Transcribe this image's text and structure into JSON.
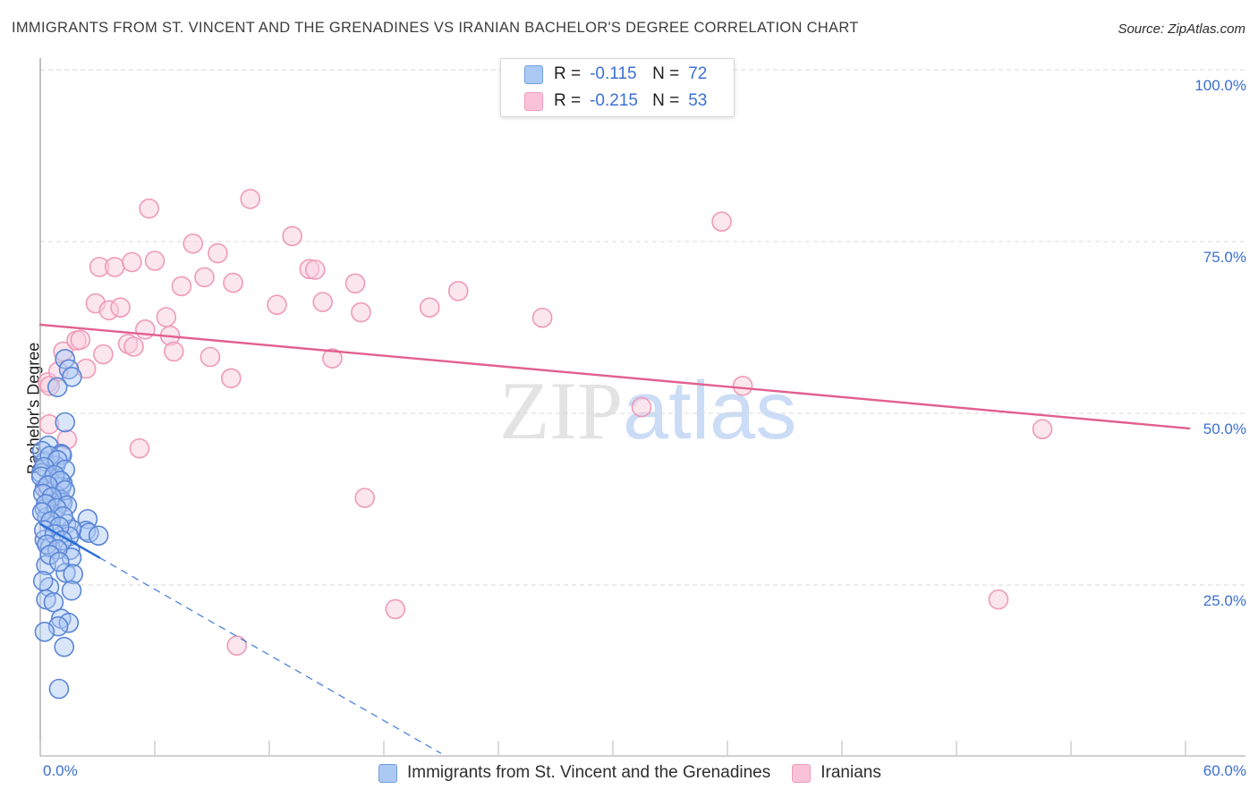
{
  "header": {
    "title": "IMMIGRANTS FROM ST. VINCENT AND THE GRENADINES VS IRANIAN BACHELOR'S DEGREE CORRELATION CHART",
    "source": "Source: ZipAtlas.com"
  },
  "watermark": {
    "part1": "ZIP",
    "part2": "atlas",
    "color1": "#e3e3e3",
    "color2": "#cbdcf6"
  },
  "axes": {
    "y_label": "Bachelor's Degree",
    "y_tick_labels": [
      "100.0%",
      "75.0%",
      "50.0%",
      "25.0%"
    ],
    "y_gridline_values": [
      100,
      75,
      50,
      25
    ],
    "x_min_label": "0.0%",
    "x_max_label": "60.0%",
    "x_tick_values": [
      0,
      6,
      12,
      18,
      24,
      30,
      36,
      42,
      48,
      54,
      60
    ],
    "x_range": [
      0,
      60
    ],
    "y_range": [
      0,
      100
    ],
    "grid": "dashed horizontal"
  },
  "legend_box": {
    "rows": [
      {
        "r_label": "R =",
        "r_value": "-0.115",
        "n_label": "N =",
        "n_value": "72",
        "swatch_fill": "#abc9f3",
        "swatch_border": "#6f9fe0"
      },
      {
        "r_label": "R =",
        "r_value": "-0.215",
        "n_label": "N =",
        "n_value": "53",
        "swatch_fill": "#f9c2d6",
        "swatch_border": "#ef9cbd"
      }
    ]
  },
  "bottom_legend": {
    "items": [
      {
        "label": "Immigrants from St. Vincent and the Grenadines",
        "swatch_fill": "#abc9f3",
        "swatch_border": "#6f9fe0"
      },
      {
        "label": "Iranians",
        "swatch_fill": "#f9c2d6",
        "swatch_border": "#ef9cbd"
      }
    ]
  },
  "chart_data": {
    "type": "scatter",
    "title": "Immigrants from St. Vincent and the Grenadines vs Iranian Bachelor's Degree",
    "xlabel": "Immigrants from St. Vincent and the Grenadines (%)",
    "ylabel": "Bachelor's Degree (%)",
    "xlim": [
      0,
      60
    ],
    "ylim": [
      0,
      100
    ],
    "legend_position": "top-center",
    "series": [
      {
        "name": "Immigrants from St. Vincent and the Grenadines",
        "R": -0.115,
        "N": 72,
        "point_fill": "rgba(170,200,245,0.45)",
        "point_stroke": "#5b86d5",
        "points": [
          [
            1.3,
            57.9
          ],
          [
            1.5,
            56.4
          ],
          [
            1.66,
            55.3
          ],
          [
            0.9,
            53.8
          ],
          [
            1.3,
            48.7
          ],
          [
            0.42,
            45.3
          ],
          [
            1.09,
            44.1
          ],
          [
            1.14,
            43.9
          ],
          [
            0.23,
            43.0
          ],
          [
            0.8,
            42.4
          ],
          [
            0.05,
            41.3
          ],
          [
            0.6,
            40.4
          ],
          [
            1.17,
            39.8
          ],
          [
            1.1,
            39.3
          ],
          [
            0.23,
            39.1
          ],
          [
            0.8,
            38.1
          ],
          [
            1.09,
            37.4
          ],
          [
            1.17,
            37.0
          ],
          [
            0.23,
            36.1
          ],
          [
            0.7,
            35.4
          ],
          [
            2.48,
            34.6
          ],
          [
            1.36,
            33.9
          ],
          [
            0.35,
            34.9
          ],
          [
            2.39,
            32.9
          ],
          [
            2.55,
            32.6
          ],
          [
            3.05,
            32.2
          ],
          [
            1.64,
            33.1
          ],
          [
            1.51,
            32.1
          ],
          [
            0.23,
            31.6
          ],
          [
            0.52,
            30.5
          ],
          [
            1.56,
            30.1
          ],
          [
            1.64,
            29.0
          ],
          [
            0.31,
            27.9
          ],
          [
            1.33,
            26.8
          ],
          [
            1.72,
            26.6
          ],
          [
            0.47,
            24.7
          ],
          [
            1.64,
            24.2
          ],
          [
            0.31,
            22.9
          ],
          [
            0.7,
            22.5
          ],
          [
            1.09,
            20.1
          ],
          [
            1.49,
            19.5
          ],
          [
            0.94,
            19.0
          ],
          [
            0.23,
            18.2
          ],
          [
            1.25,
            16.0
          ],
          [
            0.98,
            9.9
          ],
          [
            0.1,
            44.5
          ],
          [
            0.5,
            43.8
          ],
          [
            0.9,
            43.2
          ],
          [
            0.2,
            42.2
          ],
          [
            1.3,
            41.8
          ],
          [
            0.05,
            40.8
          ],
          [
            0.75,
            41.0
          ],
          [
            1.05,
            40.2
          ],
          [
            0.4,
            39.5
          ],
          [
            1.3,
            38.8
          ],
          [
            0.15,
            38.3
          ],
          [
            0.6,
            37.8
          ],
          [
            1.4,
            36.6
          ],
          [
            0.3,
            36.8
          ],
          [
            0.85,
            36.2
          ],
          [
            0.1,
            35.6
          ],
          [
            1.2,
            35.0
          ],
          [
            0.55,
            34.3
          ],
          [
            1.0,
            33.5
          ],
          [
            0.2,
            33.0
          ],
          [
            0.75,
            32.4
          ],
          [
            1.15,
            31.5
          ],
          [
            0.35,
            30.9
          ],
          [
            0.9,
            30.2
          ],
          [
            0.5,
            29.4
          ],
          [
            1.0,
            28.4
          ],
          [
            0.15,
            25.6
          ]
        ],
        "trendline": {
          "color": "#2b6fd4",
          "solid": [
            [
              0,
              33.9
            ],
            [
              3.1,
              29.0
            ]
          ],
          "dashed": [
            [
              3.1,
              29.0
            ],
            [
              21.0,
              0.5
            ]
          ]
        }
      },
      {
        "name": "Iranians",
        "R": -0.215,
        "N": 53,
        "point_fill": "rgba(250,205,222,0.5)",
        "point_stroke": "#ef9ab8",
        "points": [
          [
            0.4,
            54.5
          ],
          [
            0.5,
            54.0
          ],
          [
            0.95,
            56.1
          ],
          [
            1.2,
            59.0
          ],
          [
            1.9,
            60.6
          ],
          [
            2.1,
            60.7
          ],
          [
            2.4,
            56.5
          ],
          [
            2.9,
            66.0
          ],
          [
            3.1,
            71.3
          ],
          [
            3.3,
            58.6
          ],
          [
            3.6,
            65.0
          ],
          [
            3.9,
            71.3
          ],
          [
            4.2,
            65.4
          ],
          [
            4.6,
            60.1
          ],
          [
            4.9,
            59.7
          ],
          [
            4.8,
            72.0
          ],
          [
            5.5,
            62.2
          ],
          [
            5.7,
            79.8
          ],
          [
            6.0,
            72.2
          ],
          [
            6.6,
            64.0
          ],
          [
            6.8,
            61.3
          ],
          [
            7.0,
            59.0
          ],
          [
            7.4,
            68.5
          ],
          [
            8.0,
            74.7
          ],
          [
            8.6,
            69.8
          ],
          [
            8.9,
            58.2
          ],
          [
            9.3,
            73.3
          ],
          [
            10.0,
            55.1
          ],
          [
            10.1,
            69.0
          ],
          [
            11.0,
            81.2
          ],
          [
            12.4,
            65.8
          ],
          [
            13.2,
            75.8
          ],
          [
            14.1,
            71.0
          ],
          [
            14.4,
            70.9
          ],
          [
            14.8,
            66.2
          ],
          [
            15.3,
            58.0
          ],
          [
            16.5,
            68.9
          ],
          [
            16.8,
            64.7
          ],
          [
            20.4,
            65.4
          ],
          [
            21.9,
            67.8
          ],
          [
            26.3,
            63.9
          ],
          [
            31.5,
            50.9
          ],
          [
            35.7,
            77.9
          ],
          [
            36.8,
            54.0
          ],
          [
            52.5,
            47.7
          ],
          [
            50.2,
            22.9
          ],
          [
            1.4,
            46.2
          ],
          [
            5.2,
            44.9
          ],
          [
            17.0,
            37.7
          ],
          [
            18.6,
            21.5
          ],
          [
            10.3,
            16.2
          ],
          [
            0.4,
            38.5
          ],
          [
            0.47,
            48.4
          ]
        ],
        "trendline": {
          "color": "#e25f8f",
          "solid": [
            [
              0,
              62.9
            ],
            [
              60.2,
              47.8
            ]
          ],
          "dashed": null
        }
      }
    ]
  }
}
